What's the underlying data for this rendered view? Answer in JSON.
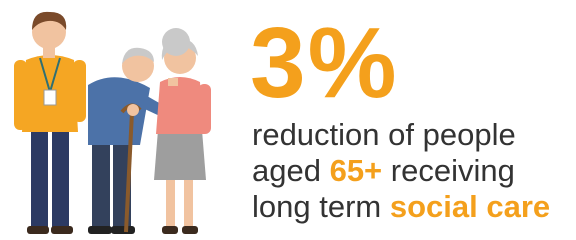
{
  "stat": "3%",
  "lines": [
    [
      "reduction of people"
    ],
    [
      "aged ",
      "65+",
      " receiving"
    ],
    [
      "long term ",
      "social care"
    ]
  ]
}
